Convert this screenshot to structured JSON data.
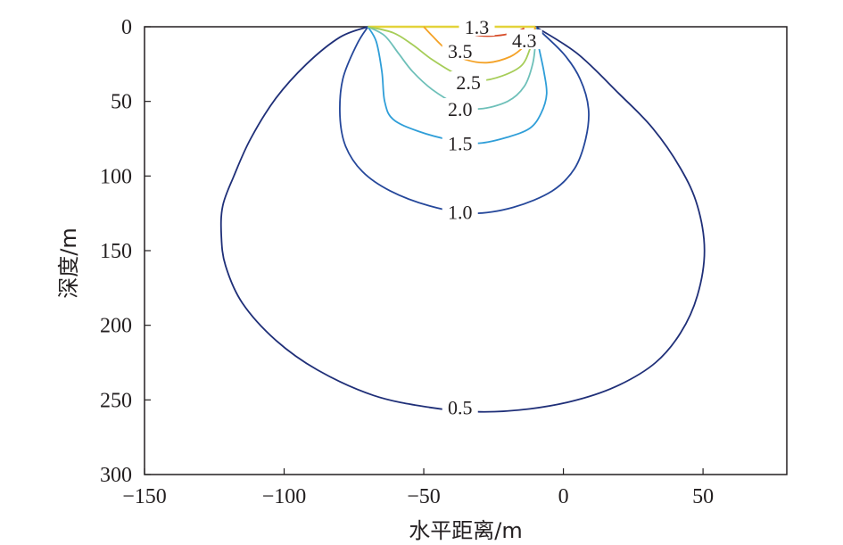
{
  "chart_data": {
    "type": "contour",
    "title": "",
    "xlabel": "水平距离/m",
    "ylabel": "深度/m",
    "xlim": [
      -150,
      80
    ],
    "ylim": [
      0,
      300
    ],
    "y_inverted": true,
    "grid": false,
    "xticks": [
      -150,
      -100,
      -50,
      0,
      50
    ],
    "xtick_labels": [
      "−150",
      "−100",
      "−50",
      "0",
      "50"
    ],
    "yticks": [
      0,
      50,
      100,
      150,
      200,
      250,
      300
    ],
    "ytick_labels": [
      "0",
      "50",
      "100",
      "150",
      "200",
      "250",
      "300"
    ],
    "levels": [
      {
        "label": "0.5",
        "color": "#1f2f78",
        "points": [
          [
            -70,
            0
          ],
          [
            -80,
            7
          ],
          [
            -92,
            25
          ],
          [
            -103,
            48
          ],
          [
            -112,
            75
          ],
          [
            -118,
            100
          ],
          [
            -122,
            120
          ],
          [
            -122.5,
            140
          ],
          [
            -121,
            160
          ],
          [
            -115,
            185
          ],
          [
            -103,
            210
          ],
          [
            -88,
            230
          ],
          [
            -68,
            247
          ],
          [
            -48,
            255
          ],
          [
            -30,
            258
          ],
          [
            -12,
            256
          ],
          [
            5,
            250
          ],
          [
            20,
            240
          ],
          [
            33,
            225
          ],
          [
            42,
            205
          ],
          [
            48,
            180
          ],
          [
            50.5,
            150
          ],
          [
            48,
            120
          ],
          [
            42,
            95
          ],
          [
            32,
            68
          ],
          [
            20,
            45
          ],
          [
            5,
            18
          ],
          [
            -10,
            0
          ]
        ],
        "label_at": [
          -37,
          255
        ]
      },
      {
        "label": "1.0",
        "color": "#25479a",
        "points": [
          [
            -70,
            0
          ],
          [
            -74,
            12
          ],
          [
            -79,
            35
          ],
          [
            -80,
            60
          ],
          [
            -78,
            80
          ],
          [
            -72,
            97
          ],
          [
            -62,
            110
          ],
          [
            -48,
            120
          ],
          [
            -33,
            125
          ],
          [
            -18,
            121
          ],
          [
            -4,
            110
          ],
          [
            4,
            95
          ],
          [
            8,
            75
          ],
          [
            9,
            55
          ],
          [
            6,
            35
          ],
          [
            0,
            18
          ],
          [
            -10,
            0
          ]
        ],
        "label_at": [
          -37,
          124
        ]
      },
      {
        "label": "1.5",
        "color": "#2f9ed8",
        "points": [
          [
            -70,
            0
          ],
          [
            -67,
            10
          ],
          [
            -65,
            30
          ],
          [
            -64,
            50
          ],
          [
            -61,
            62
          ],
          [
            -52,
            70
          ],
          [
            -40,
            76
          ],
          [
            -30,
            78
          ],
          [
            -20,
            74
          ],
          [
            -12,
            68
          ],
          [
            -8,
            58
          ],
          [
            -6,
            45
          ],
          [
            -7,
            30
          ],
          [
            -9,
            12
          ],
          [
            -10,
            0
          ]
        ],
        "label_at": [
          -37,
          78
        ]
      },
      {
        "label": "2.0",
        "color": "#6ec0b9",
        "points": [
          [
            -70,
            0
          ],
          [
            -64,
            6
          ],
          [
            -59,
            18
          ],
          [
            -54,
            30
          ],
          [
            -47,
            42
          ],
          [
            -38,
            52
          ],
          [
            -30,
            55
          ],
          [
            -20,
            50
          ],
          [
            -14,
            40
          ],
          [
            -11,
            25
          ],
          [
            -10,
            10
          ],
          [
            -10,
            0
          ]
        ],
        "label_at": [
          -37,
          55
        ]
      },
      {
        "label": "2.5",
        "color": "#a6cd58",
        "points": [
          [
            -70,
            0
          ],
          [
            -61,
            4
          ],
          [
            -54,
            12
          ],
          [
            -47,
            22
          ],
          [
            -38,
            32
          ],
          [
            -30,
            36
          ],
          [
            -22,
            33
          ],
          [
            -15,
            26
          ],
          [
            -12,
            15
          ],
          [
            -10.5,
            6
          ],
          [
            -10,
            0
          ]
        ],
        "label_at": [
          -34,
          37
        ]
      },
      {
        "label": "3.5",
        "color": "#f4a227",
        "points": [
          [
            -50,
            0
          ],
          [
            -47,
            6
          ],
          [
            -42,
            15
          ],
          [
            -35,
            22
          ],
          [
            -27,
            24
          ],
          [
            -19,
            20
          ],
          [
            -14,
            13
          ],
          [
            -11,
            5
          ],
          [
            -10,
            0
          ]
        ],
        "label_at": [
          -37,
          16
        ]
      },
      {
        "label": "4.3",
        "color": "#d64b28",
        "points": [
          [
            -36,
            0
          ],
          [
            -34,
            4
          ],
          [
            -30,
            6
          ],
          [
            -24,
            6
          ],
          [
            -18,
            4
          ],
          [
            -14,
            1
          ]
        ],
        "label_at": [
          -14,
          9
        ]
      },
      {
        "label": "1.3",
        "color": "#b11f24",
        "points": [
          [
            -32,
            0
          ],
          [
            -34,
            3
          ],
          [
            -36,
            4
          ]
        ],
        "label_at": [
          -31,
          0
        ]
      }
    ],
    "surface_line": {
      "from": -70,
      "to": -10,
      "color": "#e3d33a"
    }
  }
}
